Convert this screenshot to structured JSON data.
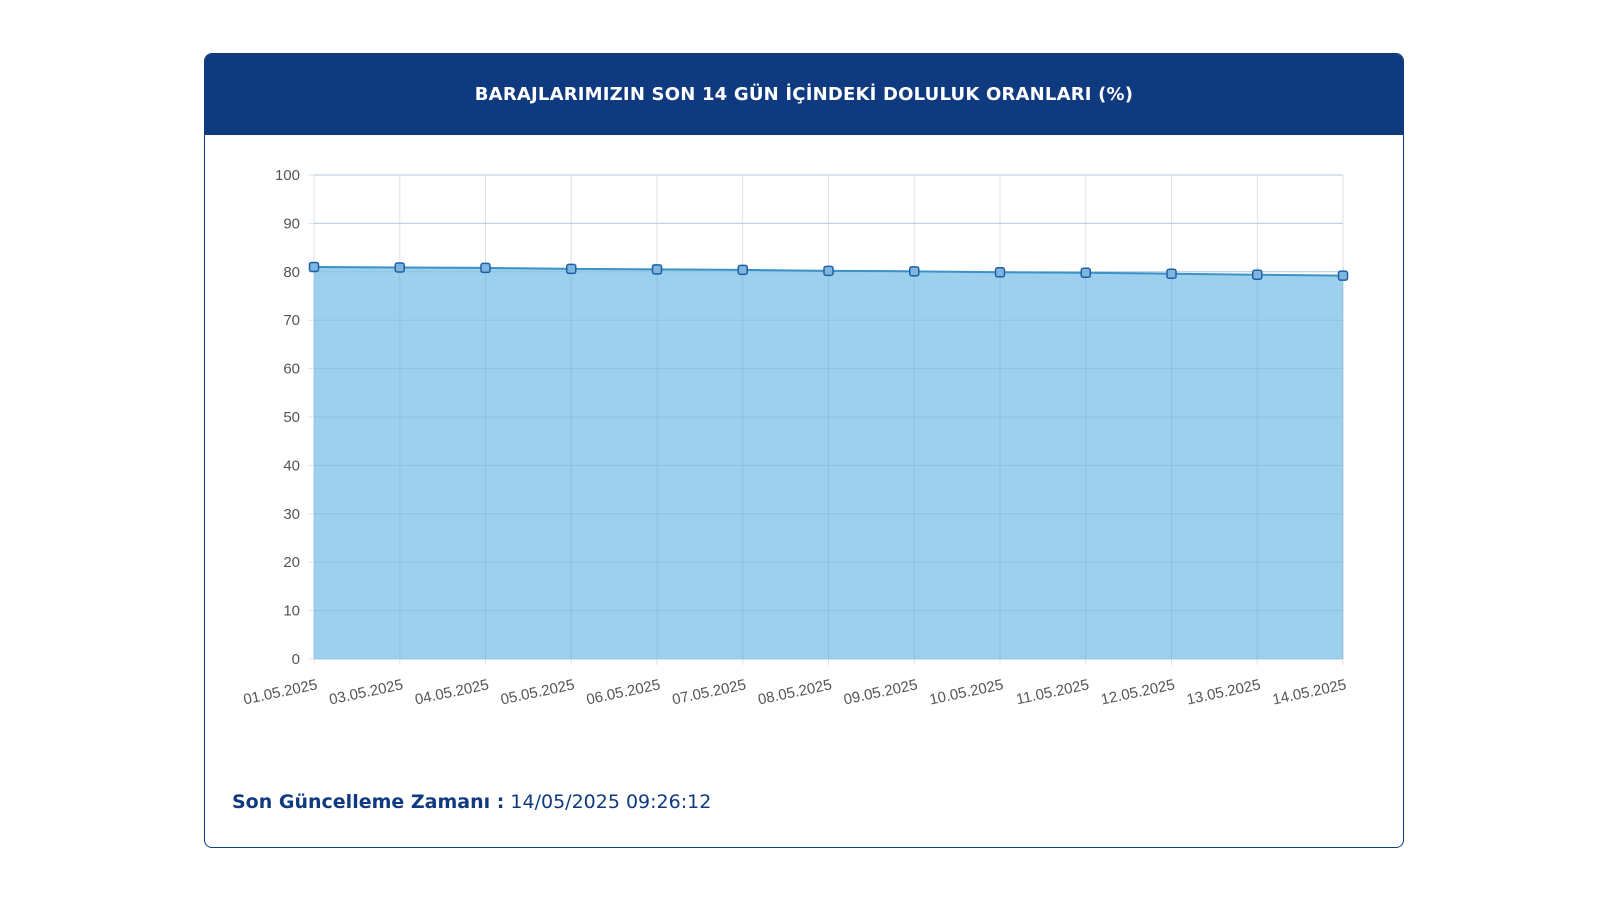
{
  "header": {
    "title": "BARAJLARIMIZIN SON 14 GÜN İÇİNDEKİ DOLULUK ORANLARI (%)"
  },
  "footer": {
    "label": "Son Güncelleme Zamanı :",
    "value": "14/05/2025 09:26:12"
  },
  "colors": {
    "header_bg": "#0f3a80",
    "area_fill": "#9cd0ec",
    "line": "#3a92c8",
    "point_fill": "#7fb6e0",
    "point_stroke": "#1f5fa8"
  },
  "chart_data": {
    "type": "area",
    "title": "",
    "xlabel": "",
    "ylabel": "",
    "x": [
      "01.05.2025",
      "03.05.2025",
      "04.05.2025",
      "05.05.2025",
      "06.05.2025",
      "07.05.2025",
      "08.05.2025",
      "09.05.2025",
      "10.05.2025",
      "11.05.2025",
      "12.05.2025",
      "13.05.2025",
      "14.05.2025"
    ],
    "series": [
      {
        "values": [
          81.0,
          80.9,
          80.8,
          80.6,
          80.5,
          80.4,
          80.2,
          80.1,
          79.9,
          79.8,
          79.6,
          79.4,
          79.2
        ]
      }
    ],
    "yticks": [
      0,
      10,
      20,
      30,
      40,
      50,
      60,
      70,
      80,
      90,
      100
    ],
    "ylim": [
      0,
      100
    ],
    "grid": true,
    "legend": "none"
  }
}
